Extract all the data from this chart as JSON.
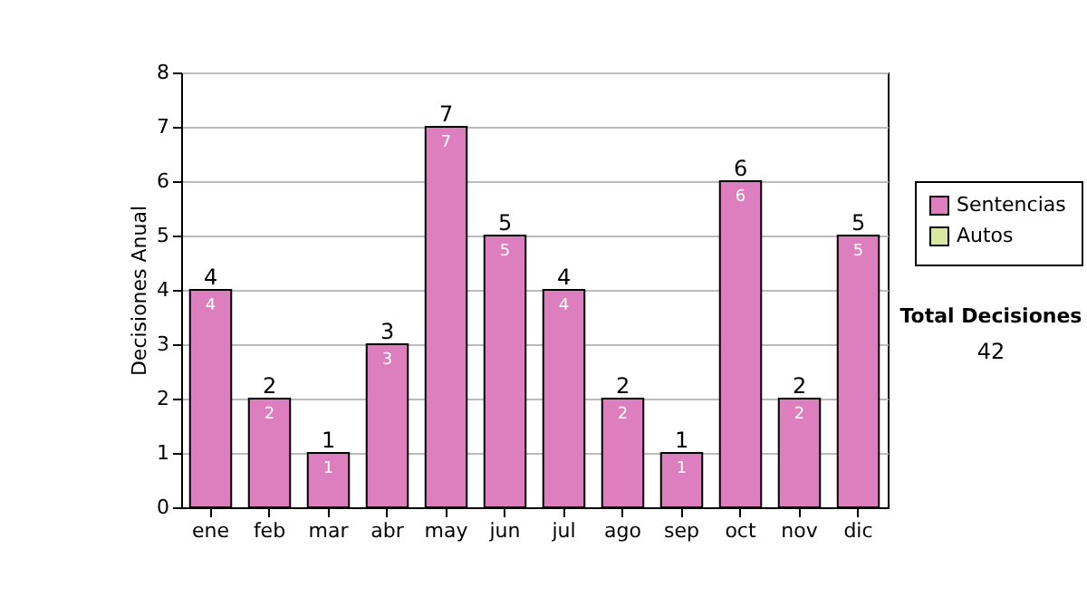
{
  "chart_data": {
    "type": "bar",
    "ylabel": "Decisiones Anual",
    "categories": [
      "ene",
      "feb",
      "mar",
      "abr",
      "may",
      "jun",
      "jul",
      "ago",
      "sep",
      "oct",
      "nov",
      "dic"
    ],
    "series": [
      {
        "name": "Sentencias",
        "color": "#dd7fbf",
        "values": [
          4,
          2,
          1,
          3,
          7,
          5,
          4,
          2,
          1,
          6,
          2,
          5
        ]
      },
      {
        "name": "Autos",
        "color": "#d8e8a0",
        "values": [
          null,
          null,
          null,
          null,
          null,
          null,
          null,
          null,
          null,
          null,
          null,
          null
        ]
      }
    ],
    "stacked": true,
    "ylim": [
      0,
      8
    ],
    "yticks": [
      0,
      1,
      2,
      3,
      4,
      5,
      6,
      7,
      8
    ],
    "grid": "y",
    "legend": "right",
    "data_labels": true,
    "totals": [
      "4",
      "2",
      "1",
      "3",
      "7",
      "5",
      "4",
      "2",
      "1",
      "6",
      "2",
      "5"
    ],
    "annotations": [
      "Total Decisiones",
      "42"
    ]
  }
}
